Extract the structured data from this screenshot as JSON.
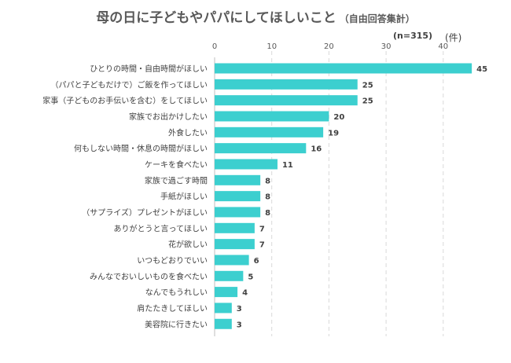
{
  "chart_data": {
    "type": "bar",
    "orientation": "horizontal",
    "title": "母の日に子どもやパパにしてほしいこと",
    "subtitle": "（自由回答集計）",
    "sample_note": "(n=315)",
    "unit_label": "(件)",
    "categories": [
      "ひとりの時間・自由時間がほしい",
      "（パパと子どもだけで）ご飯を作ってほしい",
      "家事（子どものお手伝いを含む）をしてほしい",
      "家族でお出かけしたい",
      "外食したい",
      "何もしない時間・休息の時間がほしい",
      "ケーキを食べたい",
      "家族で過ごす時間",
      "手紙がほしい",
      "（サプライズ）プレゼントがほしい",
      "ありがとうと言ってほしい",
      "花が欲しい",
      "いつもどおりでいい",
      "みんなでおいしいものを食べたい",
      "なんでもうれしい",
      "肩たたきしてほしい",
      "美容院に行きたい"
    ],
    "values": [
      45,
      25,
      25,
      20,
      19,
      16,
      11,
      8,
      8,
      8,
      7,
      7,
      6,
      5,
      4,
      3,
      3
    ],
    "x_ticks": [
      "0",
      "10",
      "20",
      "30",
      "40"
    ],
    "xlim": [
      0,
      46
    ],
    "grid": true,
    "bar_color": "#3CCFCF",
    "grid_color": "#D9D9D9",
    "text_color": "#595959"
  }
}
